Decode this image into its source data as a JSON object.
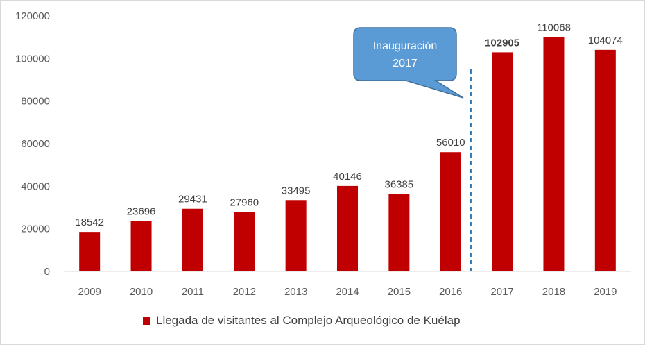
{
  "chart_data": {
    "type": "bar",
    "categories": [
      "2009",
      "2010",
      "2011",
      "2012",
      "2013",
      "2014",
      "2015",
      "2016",
      "2017",
      "2018",
      "2019"
    ],
    "series": [
      {
        "name": "Llegada de visitantes al Complejo Arqueológico de Kuélap",
        "values": [
          18542,
          23696,
          29431,
          27960,
          33495,
          40146,
          36385,
          56010,
          102905,
          110068,
          104074
        ],
        "color": "#C00000"
      }
    ],
    "data_labels": [
      "18542",
      "23696",
      "29431",
      "27960",
      "33495",
      "40146",
      "36385",
      "56010",
      "102905",
      "110068",
      "104074"
    ],
    "bold_label_category": "2017",
    "ylim": [
      0,
      120000
    ],
    "yticks": [
      0,
      20000,
      40000,
      60000,
      80000,
      100000,
      120000
    ],
    "ytick_labels": [
      "0",
      "20000",
      "40000",
      "60000",
      "80000",
      "100000",
      "120000"
    ],
    "grid": false,
    "legend_position": "bottom",
    "annotation": {
      "lines": [
        "Inauguración",
        "2017"
      ],
      "fill_color": "#5B9BD5",
      "border_color": "#41719C",
      "marker": "dashed vertical line between 2016 and 2017",
      "marker_color": "#2E75B6"
    }
  }
}
